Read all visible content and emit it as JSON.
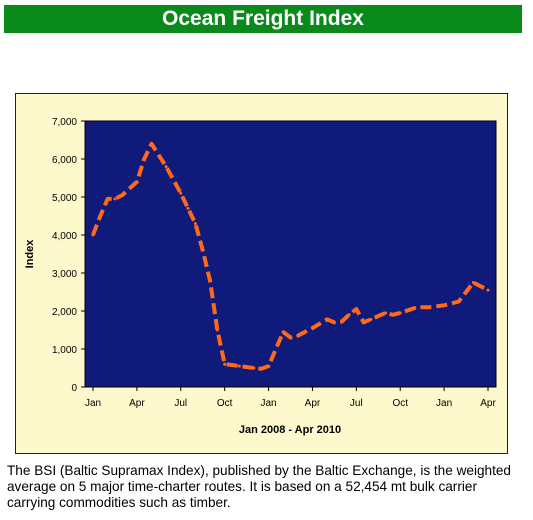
{
  "header": {
    "title": "Ocean Freight Index"
  },
  "caption": {
    "text": "The BSI (Baltic Supramax Index), published by the Baltic Exchange, is the weighted average on 5 major time-charter routes. It is based on a 52,454 mt bulk carrier carrying commodities such as timber."
  },
  "colors": {
    "banner": "#0a8a1a",
    "plot_background": "#0f1a7a",
    "frame_background": "#fdf9cc",
    "series_line": "#ff6a1a"
  },
  "chart_data": {
    "type": "line",
    "title": "",
    "xlabel": "Jan 2008 - Apr 2010",
    "ylabel": "Index",
    "ylim": [
      0,
      7000
    ],
    "yticks": [
      "0",
      "1,000",
      "2,000",
      "3,000",
      "4,000",
      "5,000",
      "6,000",
      "7,000"
    ],
    "xticks": [
      "Jan",
      "Apr",
      "Jul",
      "Oct",
      "Jan",
      "Apr",
      "Jul",
      "Oct",
      "Jan",
      "Apr"
    ],
    "xtick_months": [
      0,
      3,
      6,
      9,
      12,
      15,
      18,
      21,
      24,
      27
    ],
    "xlim_months": [
      0,
      27
    ],
    "grid": false,
    "legend": "none",
    "series": [
      {
        "x_months": [
          0,
          0.5,
          1,
          1.5,
          2,
          3,
          3.5,
          4,
          5,
          6,
          6.5,
          7,
          7.5,
          8,
          8.5,
          9,
          9.5,
          10,
          11,
          11.5,
          12,
          13,
          13.5,
          14,
          14.5,
          15,
          16,
          16.5,
          17,
          17.5,
          18,
          18.5,
          19,
          20,
          20.5,
          21,
          22,
          22.5,
          23,
          24,
          25,
          26,
          26.5,
          27
        ],
        "values": [
          4000,
          4500,
          4950,
          4950,
          5050,
          5400,
          6000,
          6400,
          5800,
          5100,
          4700,
          4300,
          3600,
          2800,
          1500,
          600,
          580,
          550,
          500,
          480,
          550,
          1450,
          1300,
          1350,
          1450,
          1550,
          1780,
          1700,
          1720,
          1900,
          2050,
          1700,
          1780,
          1950,
          1900,
          1950,
          2080,
          2100,
          2100,
          2150,
          2250,
          2750,
          2650,
          2550
        ]
      }
    ]
  }
}
